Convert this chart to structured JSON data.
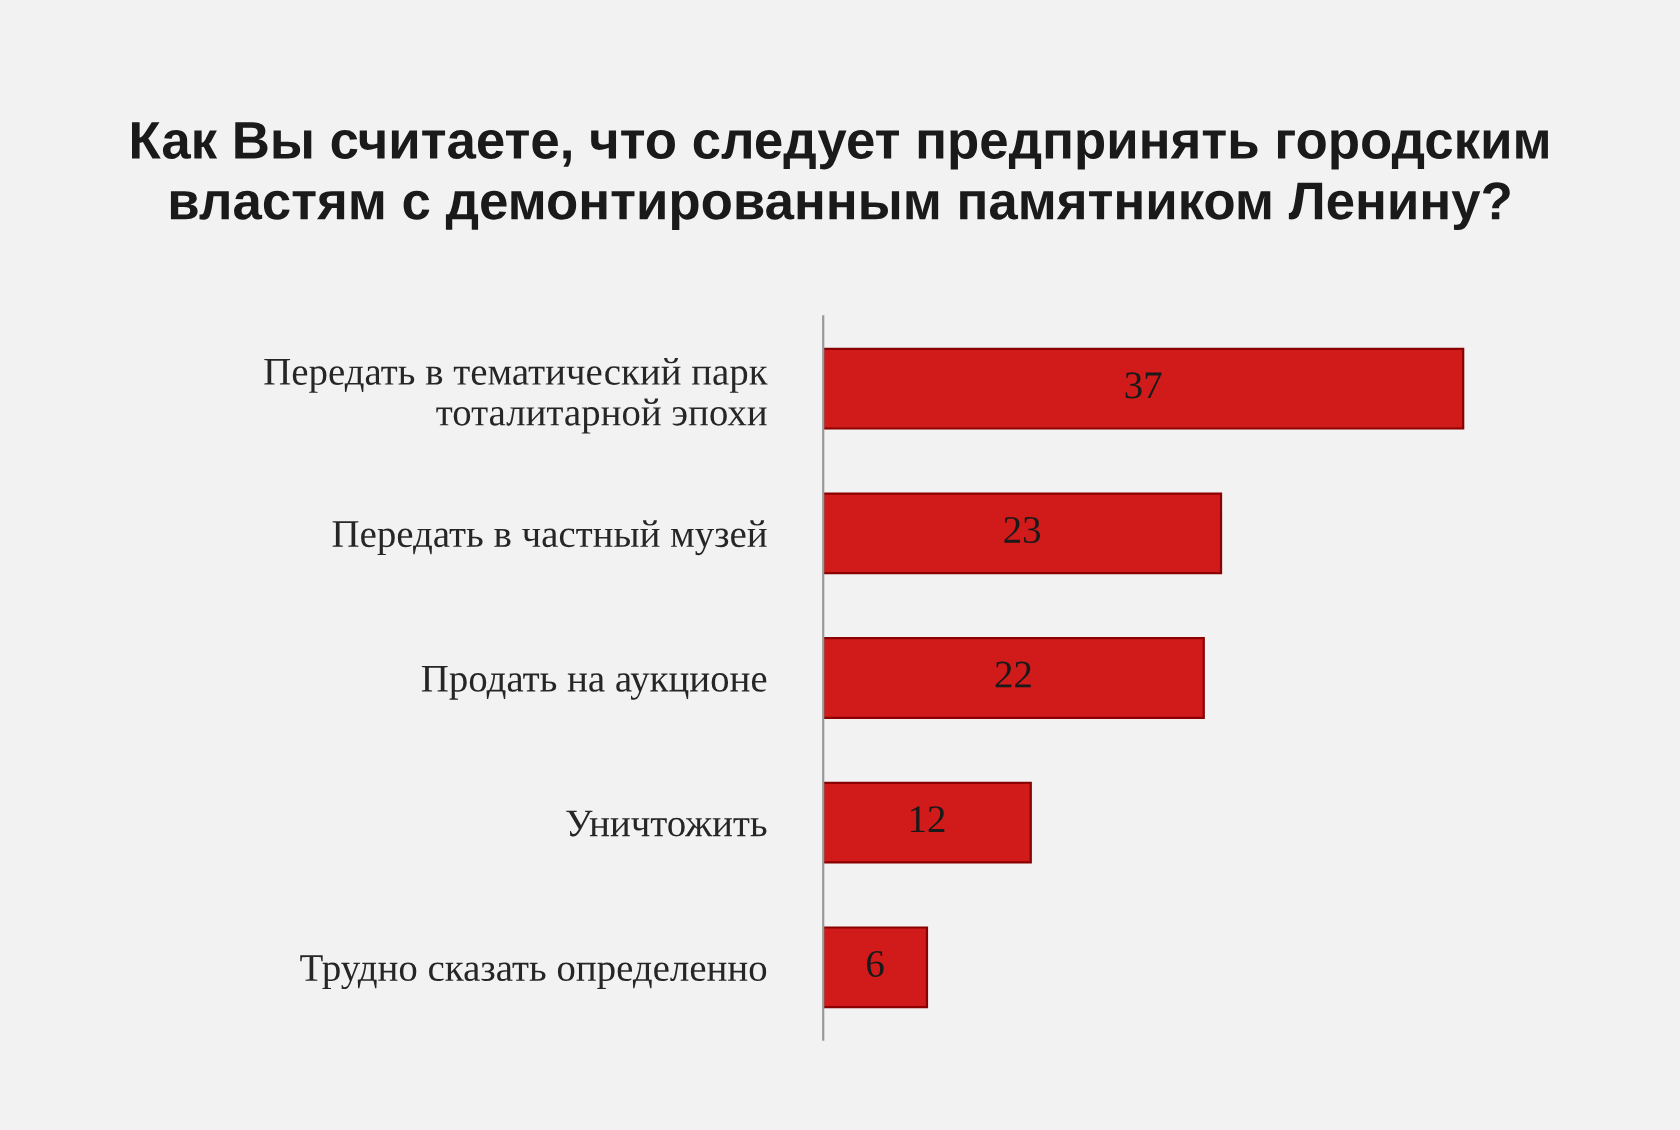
{
  "chart_data": {
    "type": "bar",
    "orientation": "horizontal",
    "title": "Как Вы считаете, что следует предпринять городским\nвластям с демонтированным памятником Ленину?",
    "categories": [
      "Передать в тематический парк\nтоталитарной эпохи",
      "Передать в частный музей",
      "Продать на аукционе",
      "Уничтожить",
      "Трудно сказать определенно"
    ],
    "values": [
      37,
      23,
      22,
      12,
      6
    ],
    "color": "#d11a1a",
    "data_labels": true,
    "tick_labels": "y",
    "grid": false,
    "legend": false
  }
}
